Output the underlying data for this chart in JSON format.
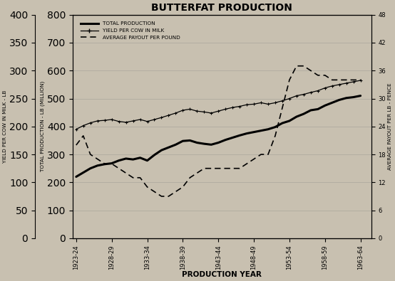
{
  "title": "BUTTERFAT PRODUCTION",
  "xlabel": "PRODUCTION YEAR",
  "ylabel_left_yield": "YIELD PER COW IN MILK - LB",
  "ylabel_left_prod": "TOTAL PRODUCTION - LB (MILLION)",
  "ylabel_right": "AVERAGE PAYOUT PER LB - PENCE",
  "years": [
    1923,
    1924,
    1925,
    1926,
    1927,
    1928,
    1929,
    1930,
    1931,
    1932,
    1933,
    1934,
    1935,
    1936,
    1937,
    1938,
    1939,
    1940,
    1941,
    1942,
    1943,
    1944,
    1945,
    1946,
    1947,
    1948,
    1949,
    1950,
    1951,
    1952,
    1953,
    1954,
    1955,
    1956,
    1957,
    1958,
    1959,
    1960,
    1961,
    1962,
    1963
  ],
  "total_production_mlb": [
    220,
    235,
    250,
    260,
    265,
    268,
    278,
    285,
    282,
    288,
    278,
    298,
    315,
    325,
    335,
    348,
    350,
    342,
    338,
    335,
    342,
    352,
    360,
    368,
    375,
    380,
    385,
    390,
    398,
    412,
    420,
    435,
    445,
    458,
    462,
    475,
    485,
    495,
    502,
    505,
    510
  ],
  "yield_per_cow_lb": [
    390,
    403,
    413,
    420,
    422,
    425,
    418,
    415,
    420,
    425,
    418,
    425,
    432,
    440,
    448,
    458,
    462,
    455,
    452,
    448,
    455,
    462,
    468,
    472,
    478,
    480,
    485,
    480,
    485,
    492,
    500,
    510,
    515,
    522,
    528,
    538,
    545,
    550,
    555,
    560,
    565
  ],
  "avg_payout_pence": [
    20,
    22,
    18,
    17,
    16,
    16,
    15,
    14,
    13,
    13,
    11,
    10,
    9,
    9,
    10,
    11,
    13,
    14,
    15,
    15,
    15,
    15,
    15,
    15,
    16,
    17,
    18,
    18,
    22,
    28,
    34,
    37,
    37,
    36,
    35,
    35,
    34,
    34,
    34,
    34,
    34
  ],
  "xlim": [
    1922.5,
    1964.5
  ],
  "ylim_prod": [
    0,
    800
  ],
  "ylim_yield": [
    0,
    400
  ],
  "ylim_payout": [
    0,
    48
  ],
  "yticks_prod": [
    0,
    100,
    200,
    300,
    400,
    500,
    600,
    700,
    800
  ],
  "yticks_yield": [
    0,
    50,
    100,
    150,
    200,
    250,
    300,
    350,
    400
  ],
  "yticks_payout": [
    0,
    6,
    12,
    18,
    24,
    30,
    36,
    42,
    48
  ],
  "xtick_positions": [
    1923,
    1928,
    1933,
    1938,
    1943,
    1948,
    1953,
    1958,
    1963
  ],
  "xtick_labels": [
    "1923-24",
    "1928-29",
    "1933-34",
    "1938-39",
    "1943-44",
    "1948-49",
    "1953-54",
    "1958-59",
    "1963-64"
  ],
  "bg_color": "#c8c0b0",
  "line_color": "#111111",
  "legend_labels": [
    "TOTAL PRODUCTION",
    "YIELD PER COW IN MILK",
    "AVERAGE PAYOUT PER POUND"
  ]
}
